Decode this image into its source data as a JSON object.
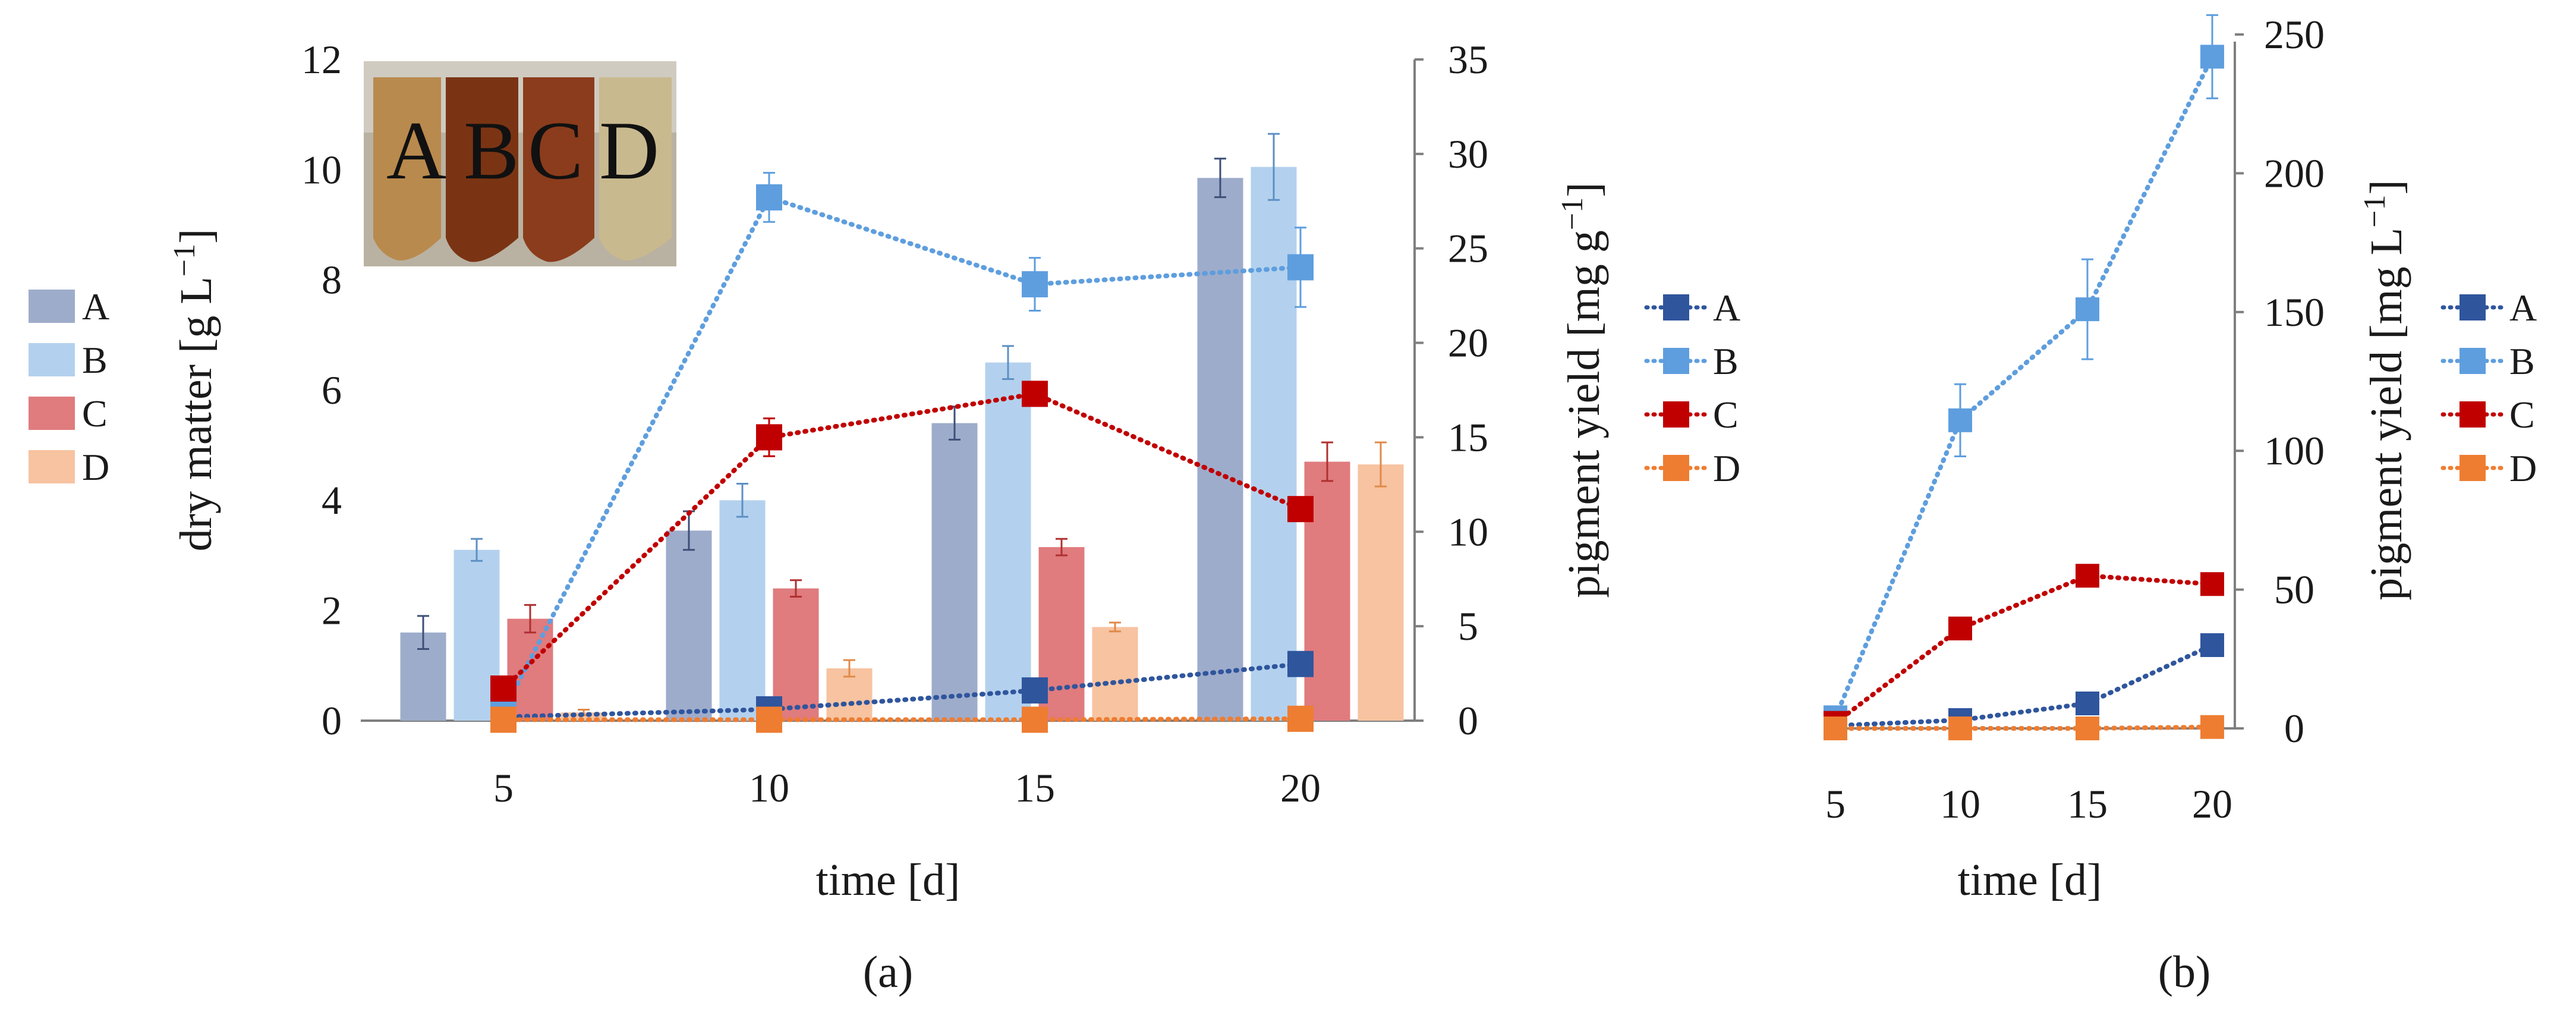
{
  "chart_data": [
    {
      "panel": "a",
      "type": "bar+line",
      "caption": "(a)",
      "x": [
        5,
        10,
        15,
        20
      ],
      "xlabel": "time [d]",
      "ylabel": "dry matter [g L⁻¹]",
      "ylabel_main": "dry matter [g L",
      "ylabel_sup": "−1",
      "ylabel_end": "]",
      "ylim": [
        0,
        12
      ],
      "yticks": [
        "0",
        "2",
        "4",
        "6",
        "8",
        "10",
        "12"
      ],
      "y2label": "pigment yield [mg g⁻¹]",
      "y2label_main": "pigment yield [mg g",
      "y2label_sup": "−1",
      "y2label_end": "]",
      "y2lim": [
        0,
        35
      ],
      "y2ticks": [
        "0",
        "5",
        "10",
        "15",
        "20",
        "25",
        "30",
        "35"
      ],
      "xticks": [
        "5",
        "10",
        "15",
        "20"
      ],
      "bar_series": [
        {
          "name": "A",
          "color": "#9eaccb",
          "values": [
            1.6,
            3.45,
            5.4,
            9.85
          ],
          "err": [
            0.3,
            0.35,
            0.3,
            0.35
          ]
        },
        {
          "name": "B",
          "color": "#b3d1ee",
          "values": [
            3.1,
            4.0,
            6.5,
            10.05
          ],
          "err": [
            0.2,
            0.3,
            0.3,
            0.6
          ]
        },
        {
          "name": "C",
          "color": "#e07b7e",
          "values": [
            1.85,
            2.4,
            3.15,
            4.7
          ],
          "err": [
            0.25,
            0.15,
            0.15,
            0.35
          ]
        },
        {
          "name": "D",
          "color": "#f7c3a1",
          "values": [
            0.15,
            0.95,
            1.7,
            4.65
          ],
          "err": [
            0.05,
            0.15,
            0.08,
            0.4
          ]
        }
      ],
      "line_series": [
        {
          "name": "A",
          "color": "#2f559d",
          "values": [
            0.2,
            0.6,
            1.6,
            3.0
          ],
          "err": [
            0,
            0,
            0,
            0
          ]
        },
        {
          "name": "B",
          "color": "#5e9ede",
          "values": [
            0.5,
            27.7,
            23.1,
            24.0
          ],
          "err": [
            0,
            1.3,
            1.4,
            2.1
          ]
        },
        {
          "name": "C",
          "color": "#c00000",
          "values": [
            1.7,
            15.0,
            17.3,
            11.2
          ],
          "err": [
            0,
            1.0,
            0,
            0
          ]
        },
        {
          "name": "D",
          "color": "#ee7d31",
          "values": [
            0.05,
            0.05,
            0.05,
            0.1
          ],
          "err": [
            0,
            0,
            0,
            0
          ]
        }
      ],
      "inset": {
        "letters": [
          "A",
          "B",
          "C",
          "D"
        ]
      }
    },
    {
      "panel": "b",
      "type": "line",
      "caption": "(b)",
      "x": [
        5,
        10,
        15,
        20
      ],
      "xlabel": "time [d]",
      "xticks": [
        "5",
        "10",
        "15",
        "20"
      ],
      "y2label": "pigment yield [mg L⁻¹]",
      "y2label_main": "pigment yield [mg L",
      "y2label_sup": "−1",
      "y2label_end": "]",
      "y2lim": [
        0,
        250
      ],
      "y2ticks": [
        "0",
        "50",
        "100",
        "150",
        "200",
        "250"
      ],
      "line_series": [
        {
          "name": "A",
          "color": "#2f559d",
          "values": [
            1,
            3,
            9,
            30
          ],
          "err": [
            0,
            0,
            0,
            0
          ]
        },
        {
          "name": "B",
          "color": "#5e9ede",
          "values": [
            4,
            111,
            151,
            242
          ],
          "err": [
            0,
            13,
            18,
            15
          ]
        },
        {
          "name": "C",
          "color": "#c00000",
          "values": [
            2,
            36,
            55,
            52
          ],
          "err": [
            0,
            0,
            0,
            0
          ]
        },
        {
          "name": "D",
          "color": "#ee7d31",
          "values": [
            0,
            0,
            0,
            0.5
          ],
          "err": [
            0,
            0,
            0,
            0
          ]
        }
      ]
    }
  ]
}
